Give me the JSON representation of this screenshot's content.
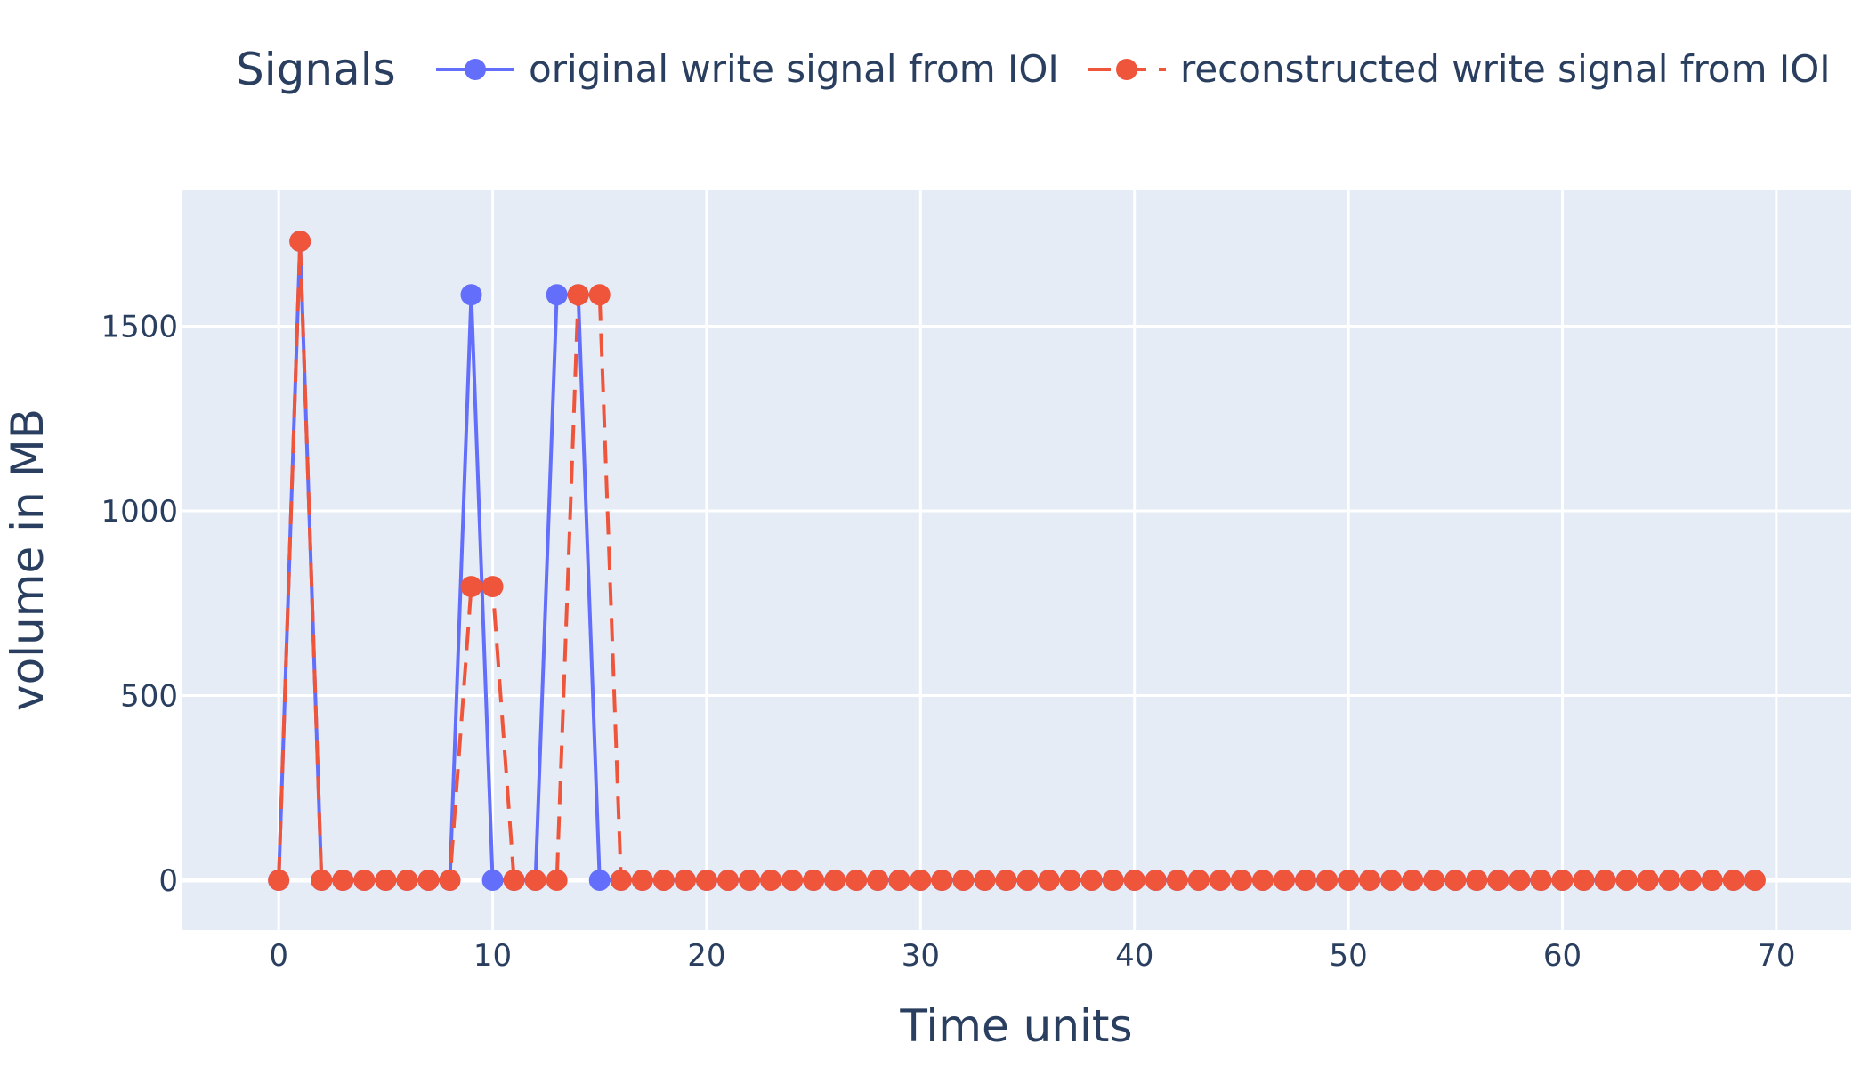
{
  "legend": {
    "title": "Signals"
  },
  "chart_data": {
    "type": "line",
    "xlabel": "Time units",
    "ylabel": "volume in MB",
    "xlim": [
      -4.5,
      73.5
    ],
    "ylim": [
      -135,
      1870
    ],
    "xticks": [
      0,
      10,
      20,
      30,
      40,
      50,
      60,
      70
    ],
    "yticks": [
      0,
      500,
      1000,
      1500
    ],
    "grid": true,
    "legend_position": "top",
    "x": [
      0,
      1,
      2,
      3,
      4,
      5,
      6,
      7,
      8,
      9,
      10,
      11,
      12,
      13,
      14,
      15,
      16,
      17,
      18,
      19,
      20,
      21,
      22,
      23,
      24,
      25,
      26,
      27,
      28,
      29,
      30,
      31,
      32,
      33,
      34,
      35,
      36,
      37,
      38,
      39,
      40,
      41,
      42,
      43,
      44,
      45,
      46,
      47,
      48,
      49,
      50,
      51,
      52,
      53,
      54,
      55,
      56,
      57,
      58,
      59,
      60,
      61,
      62,
      63,
      64,
      65,
      66,
      67,
      68,
      69
    ],
    "series": [
      {
        "name": "original write signal from IOI",
        "color": "#636efa",
        "dash": "solid",
        "values": [
          0,
          1730,
          0,
          0,
          0,
          0,
          0,
          0,
          0,
          1585,
          0,
          0,
          0,
          1585,
          1585,
          0,
          0,
          0,
          0,
          0,
          0,
          0,
          0,
          0,
          0,
          0,
          0,
          0,
          0,
          0,
          0,
          0,
          0,
          0,
          0,
          0,
          0,
          0,
          0,
          0,
          0,
          0,
          0,
          0,
          0,
          0,
          0,
          0,
          0,
          0,
          0,
          0,
          0,
          0,
          0,
          0,
          0,
          0,
          0,
          0,
          0,
          0,
          0,
          0,
          0,
          0,
          0,
          0,
          0,
          0
        ]
      },
      {
        "name": "reconstructed write signal from IOI",
        "color": "#ef553b",
        "dash": "dash",
        "values": [
          0,
          1730,
          0,
          0,
          0,
          0,
          0,
          0,
          0,
          795,
          795,
          0,
          0,
          0,
          1585,
          1585,
          0,
          0,
          0,
          0,
          0,
          0,
          0,
          0,
          0,
          0,
          0,
          0,
          0,
          0,
          0,
          0,
          0,
          0,
          0,
          0,
          0,
          0,
          0,
          0,
          0,
          0,
          0,
          0,
          0,
          0,
          0,
          0,
          0,
          0,
          0,
          0,
          0,
          0,
          0,
          0,
          0,
          0,
          0,
          0,
          0,
          0,
          0,
          0,
          0,
          0,
          0,
          0,
          0,
          0
        ]
      }
    ]
  }
}
